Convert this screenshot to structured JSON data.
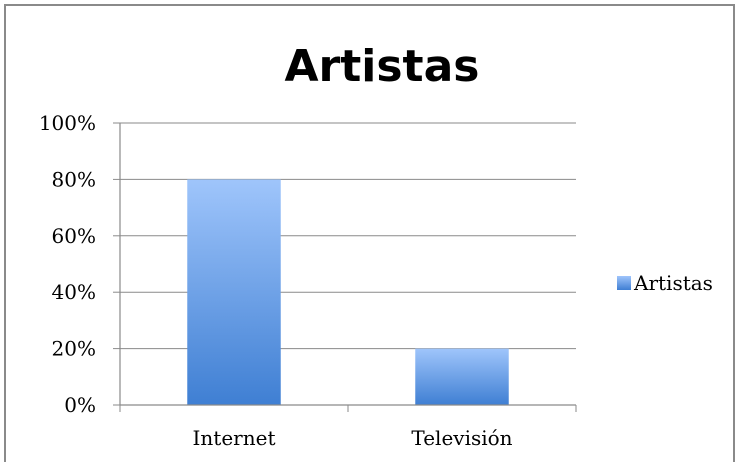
{
  "chart_data": {
    "type": "bar",
    "title": "Artistas",
    "categories": [
      "Internet",
      "Televisión"
    ],
    "series": [
      {
        "name": "Artistas",
        "values": [
          80,
          20
        ],
        "color": "#4a86d6"
      }
    ],
    "y_ticks": [
      "0%",
      "20%",
      "40%",
      "60%",
      "80%",
      "100%"
    ],
    "ylim": [
      0,
      100
    ],
    "grid": true,
    "legend_position": "right",
    "xlabel": "",
    "ylabel": ""
  }
}
